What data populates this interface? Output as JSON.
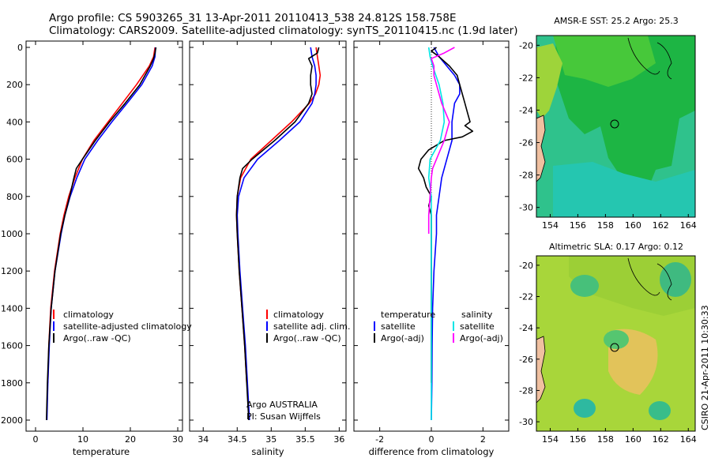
{
  "header": {
    "line1": "Argo profile: CS 5903265_31 13-Apr-2011 20110413_538 24.812S 158.758E",
    "line2": "Climatology: CARS2009. Satellite-adjusted climatology: synTS_20110415.nc (1.9d later)"
  },
  "footer": {
    "operator": "Argo AUSTRALIA",
    "pi": "PI: Susan Wijffels",
    "timestamp": "CSIRO 21-Apr-2011 10:30:33"
  },
  "colors": {
    "climatology": "#ff0000",
    "satellite": "#0000ff",
    "argo": "#000000",
    "sat_salinity": "#00e5e5",
    "argo_salinity": "#ff00ff"
  },
  "chart_data": [
    {
      "id": "temperature",
      "type": "line",
      "xlabel": "temperature",
      "ylabel": "",
      "xlim": [
        -2,
        31
      ],
      "ylim": [
        2050,
        0
      ],
      "y_reversed": true,
      "xticks": [
        0,
        10,
        20,
        30
      ],
      "yticks": [
        0,
        200,
        400,
        600,
        800,
        1000,
        1200,
        1400,
        1600,
        1800,
        2000
      ],
      "legend_position": "lower-right",
      "series": [
        {
          "name": "climatology",
          "color": "#ff0000",
          "y": [
            0,
            50,
            100,
            200,
            300,
            400,
            500,
            600,
            700,
            800,
            900,
            1000,
            1200,
            1400,
            1600,
            1800
          ],
          "x": [
            25.2,
            24.9,
            24.0,
            21.3,
            18.3,
            15.3,
            12.3,
            9.9,
            8.3,
            7.0,
            6.0,
            5.2,
            4.0,
            3.2,
            2.8,
            2.6
          ]
        },
        {
          "name": "satellite-adjusted climatology",
          "color": "#0000ff",
          "y": [
            0,
            50,
            100,
            200,
            300,
            400,
            500,
            600,
            700,
            800,
            900,
            1000,
            1200,
            1400,
            1600,
            1800,
            2000
          ],
          "x": [
            25.3,
            25.2,
            24.6,
            22.4,
            19.3,
            16.1,
            13.1,
            10.4,
            8.7,
            7.3,
            6.2,
            5.4,
            4.1,
            3.3,
            2.9,
            2.6,
            2.4
          ]
        },
        {
          "name": "Argo(..raw -QC)",
          "color": "#000000",
          "y": [
            0,
            30,
            60,
            100,
            200,
            300,
            400,
            500,
            600,
            650,
            700,
            800,
            900,
            1000,
            1200,
            1400,
            1600,
            1800,
            2000
          ],
          "x": [
            25.4,
            25.2,
            24.9,
            24.2,
            22.0,
            18.9,
            15.6,
            12.6,
            9.9,
            8.6,
            8.1,
            7.2,
            6.2,
            5.3,
            4.1,
            3.3,
            2.8,
            2.5,
            2.3
          ]
        }
      ]
    },
    {
      "id": "salinity",
      "type": "line",
      "xlabel": "salinity",
      "ylabel": "",
      "xlim": [
        33.8,
        36.1
      ],
      "ylim": [
        2050,
        0
      ],
      "y_reversed": true,
      "xticks": [
        34,
        34.5,
        35,
        35.5,
        36
      ],
      "yticks": [],
      "legend_position": "lower-right",
      "series": [
        {
          "name": "climatology",
          "color": "#ff0000",
          "y": [
            0,
            50,
            100,
            150,
            200,
            250,
            300,
            400,
            500,
            600,
            700,
            800,
            900,
            1000,
            1200,
            1400,
            1600,
            1800
          ],
          "x": [
            35.66,
            35.68,
            35.7,
            35.72,
            35.7,
            35.65,
            35.56,
            35.3,
            35.0,
            34.7,
            34.55,
            34.5,
            34.49,
            34.5,
            34.53,
            34.57,
            34.61,
            34.64
          ]
        },
        {
          "name": "satellite adj. clim.",
          "color": "#0000ff",
          "y": [
            0,
            50,
            100,
            150,
            200,
            250,
            300,
            400,
            500,
            600,
            700,
            800,
            900,
            1000,
            1200,
            1400,
            1600,
            1800,
            2000
          ],
          "x": [
            35.58,
            35.6,
            35.64,
            35.66,
            35.66,
            35.64,
            35.6,
            35.42,
            35.12,
            34.8,
            34.6,
            34.52,
            34.5,
            34.51,
            34.54,
            34.58,
            34.62,
            34.65,
            34.68
          ]
        },
        {
          "name": "Argo(..raw -QC)",
          "color": "#000000",
          "y": [
            0,
            30,
            60,
            100,
            150,
            200,
            250,
            300,
            400,
            500,
            600,
            650,
            700,
            800,
            900,
            1000,
            1200,
            1400,
            1600,
            1800,
            2000
          ],
          "x": [
            35.7,
            35.68,
            35.55,
            35.6,
            35.58,
            35.58,
            35.6,
            35.55,
            35.35,
            35.05,
            34.72,
            34.58,
            34.54,
            34.5,
            34.49,
            34.5,
            34.53,
            34.57,
            34.61,
            34.64,
            34.67
          ]
        }
      ]
    },
    {
      "id": "difference",
      "type": "line",
      "xlabel": "difference from climatology",
      "ylabel": "",
      "xlim": [
        -3,
        3
      ],
      "ylim": [
        2050,
        0
      ],
      "y_reversed": true,
      "xticks": [
        -2,
        0,
        2
      ],
      "yticks": [],
      "legend_position": "lower-right",
      "legend_groups": [
        "temperature",
        "salinity"
      ],
      "series": [
        {
          "name": "satellite",
          "group": "temperature",
          "color": "#0000ff",
          "y": [
            0,
            50,
            100,
            150,
            200,
            250,
            300,
            400,
            500,
            600,
            700,
            800,
            900,
            1000,
            1200,
            1400,
            1600,
            1800,
            2000
          ],
          "x": [
            0.1,
            0.3,
            0.6,
            0.9,
            1.1,
            1.1,
            0.9,
            0.8,
            0.8,
            0.6,
            0.4,
            0.3,
            0.2,
            0.2,
            0.1,
            0.05,
            0.03,
            0.02,
            0.0
          ]
        },
        {
          "name": "Argo(-adj)",
          "group": "temperature",
          "color": "#000000",
          "y": [
            0,
            20,
            50,
            100,
            150,
            200,
            250,
            300,
            350,
            400,
            420,
            450,
            480,
            500,
            550,
            600,
            650,
            700,
            750,
            800,
            850,
            900,
            1000,
            1200,
            1400,
            1600,
            1800
          ],
          "x": [
            0.2,
            0.0,
            0.3,
            0.7,
            1.0,
            1.1,
            1.2,
            1.3,
            1.4,
            1.5,
            1.3,
            1.6,
            1.2,
            0.5,
            -0.1,
            -0.4,
            -0.5,
            -0.3,
            -0.2,
            0.0,
            -0.1,
            0.0,
            0.0,
            0.0,
            0.0,
            0.0,
            0.0
          ]
        },
        {
          "name": "satellite",
          "group": "salinity",
          "color": "#00e5e5",
          "y": [
            0,
            50,
            100,
            200,
            300,
            400,
            500,
            600,
            700,
            800,
            900,
            1000,
            1200,
            1400,
            1600,
            1800,
            2000
          ],
          "x": [
            -0.1,
            -0.05,
            0.05,
            0.3,
            0.45,
            0.5,
            0.35,
            -0.05,
            -0.1,
            0.0,
            0.0,
            0.0,
            0.0,
            0.0,
            0.0,
            0.0,
            0.0
          ]
        },
        {
          "name": "Argo(-adj)",
          "group": "salinity",
          "color": "#ff00ff",
          "y": [
            0,
            30,
            60,
            100,
            150,
            200,
            300,
            400,
            450,
            500,
            600,
            650,
            700,
            800,
            900,
            1000
          ],
          "x": [
            0.9,
            0.5,
            0.0,
            0.1,
            0.1,
            0.2,
            0.4,
            0.7,
            0.6,
            0.5,
            0.2,
            0.05,
            0.0,
            -0.05,
            -0.1,
            -0.1
          ]
        }
      ]
    },
    {
      "id": "sst_map",
      "type": "heatmap",
      "title": "AMSR-E SST: 25.2 Argo: 25.3",
      "xlim": [
        153,
        164.5
      ],
      "ylim": [
        -30.6,
        -19.4
      ],
      "xticks": [
        154,
        156,
        158,
        160,
        162,
        164
      ],
      "yticks": [
        -20,
        -22,
        -24,
        -26,
        -28,
        -30
      ],
      "float_position": [
        158.758,
        -24.812
      ]
    },
    {
      "id": "sla_map",
      "type": "heatmap",
      "title": "Altimetric SLA: 0.17 Argo: 0.12",
      "xlim": [
        153,
        164.5
      ],
      "ylim": [
        -30.6,
        -19.4
      ],
      "xticks": [
        154,
        156,
        158,
        160,
        162,
        164
      ],
      "yticks": [
        -20,
        -22,
        -24,
        -26,
        -28,
        -30
      ],
      "float_position": [
        158.758,
        -24.812
      ]
    }
  ]
}
